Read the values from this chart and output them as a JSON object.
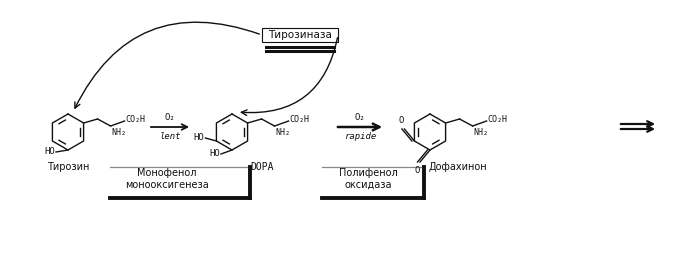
{
  "bg_color": "#ffffff",
  "line_color": "#111111",
  "text_color": "#111111",
  "figsize": [
    6.99,
    2.8
  ],
  "dpi": 100,
  "tyrosine_label": "Тирозин",
  "dopa_label": "DOPA",
  "dopaquinone_label": "Дофахинон",
  "enzyme1_label": "Тирозиназа",
  "enzyme2_label": "Монофенол\nмонооксигенеза",
  "enzyme3_label": "Полифенол\nоксидаза",
  "o2_label": "O₂",
  "lent_label": "lent",
  "rapide_label": "rapide",
  "co2h": "CO₂H",
  "nh2": "NH₂",
  "ho": "HO",
  "o": "O"
}
